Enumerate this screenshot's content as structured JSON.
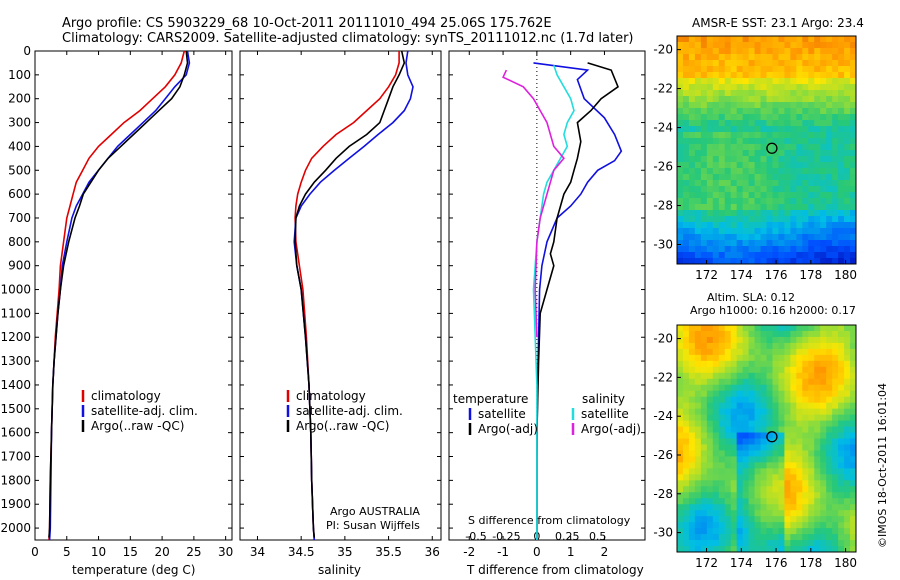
{
  "header": {
    "line1": "Argo profile: CS 5903229_68 10-Oct-2011 20111010_494 25.06S 175.762E",
    "line2": "Climatology: CARS2009. Satellite-adjusted climatology: synTS_20111012.nc (1.7d later)"
  },
  "colors": {
    "climatology": "#e00000",
    "satellite": "#1010e0",
    "argo": "#000000",
    "salinity_sat": "#22dddd",
    "salinity_argo": "#dd22dd"
  },
  "chart_data": [
    {
      "type": "line",
      "name": "temperature-profile",
      "xlabel": "temperature (deg C)",
      "ylabel": "",
      "xlim": [
        0,
        31
      ],
      "ylim": [
        2050,
        0
      ],
      "xticks": [
        0,
        5,
        10,
        15,
        20,
        25,
        30
      ],
      "yticks": [
        0,
        100,
        200,
        300,
        400,
        500,
        600,
        700,
        800,
        900,
        1000,
        1100,
        1200,
        1300,
        1400,
        1500,
        1600,
        1700,
        1800,
        1900,
        2000
      ],
      "legend_position": "lower-center",
      "series": [
        {
          "name": "climatology",
          "color": "#e00000",
          "x": [
            23.5,
            23,
            22,
            20.5,
            18.5,
            16.5,
            14,
            12,
            10,
            8.5,
            7.5,
            6.5,
            6,
            5.5,
            5,
            4.5,
            4,
            3.8,
            3.5,
            3.2,
            3,
            2.8,
            2.6,
            2.4,
            2.3,
            2.2
          ],
          "y": [
            0,
            50,
            100,
            150,
            200,
            250,
            300,
            350,
            400,
            450,
            500,
            550,
            600,
            650,
            700,
            800,
            900,
            1000,
            1100,
            1200,
            1300,
            1400,
            1600,
            1800,
            2000,
            2050
          ]
        },
        {
          "name": "satellite-adj. clim.",
          "color": "#1010e0",
          "x": [
            24,
            24.3,
            23.8,
            22,
            20.5,
            19,
            17,
            15,
            13,
            11.5,
            10,
            8.5,
            7.5,
            6.5,
            5.8,
            5,
            4.3,
            4,
            3.6,
            3.3,
            3,
            2.8,
            2.6,
            2.5,
            2.4,
            2.3
          ],
          "y": [
            0,
            50,
            100,
            150,
            200,
            250,
            300,
            350,
            400,
            450,
            500,
            550,
            600,
            650,
            700,
            800,
            900,
            1000,
            1100,
            1200,
            1300,
            1400,
            1600,
            1800,
            2000,
            2050
          ]
        },
        {
          "name": "Argo(..raw -QC)",
          "color": "#000000",
          "x": [
            23.8,
            24,
            23.5,
            22.8,
            21.5,
            19.5,
            17.5,
            15.5,
            13.5,
            11.5,
            10,
            8.8,
            7.6,
            7,
            6.3,
            5.3,
            4.5,
            4,
            3.6,
            3.3,
            3,
            2.8,
            2.6,
            2.4,
            2.3,
            2.2
          ],
          "y": [
            0,
            50,
            100,
            150,
            200,
            250,
            300,
            350,
            400,
            450,
            500,
            550,
            600,
            650,
            700,
            800,
            900,
            1000,
            1100,
            1200,
            1300,
            1400,
            1600,
            1800,
            2000,
            2040
          ]
        }
      ]
    },
    {
      "type": "line",
      "name": "salinity-profile",
      "xlabel": "salinity",
      "ylabel": "",
      "xlim": [
        33.8,
        36.1
      ],
      "ylim": [
        2050,
        0
      ],
      "xticks": [
        34,
        34.5,
        35,
        35.5,
        36
      ],
      "legend_position": "lower-center",
      "series": [
        {
          "name": "climatology",
          "color": "#e00000",
          "x": [
            35.62,
            35.62,
            35.58,
            35.5,
            35.4,
            35.25,
            35.1,
            34.9,
            34.75,
            34.62,
            34.55,
            34.5,
            34.46,
            34.44,
            34.43,
            34.44,
            34.48,
            34.52,
            34.56,
            34.59,
            34.61,
            34.62,
            34.64,
            34.65
          ],
          "y": [
            0,
            50,
            100,
            150,
            200,
            250,
            300,
            350,
            400,
            450,
            500,
            550,
            600,
            650,
            700,
            800,
            900,
            1000,
            1200,
            1400,
            1600,
            1800,
            2000,
            2050
          ]
        },
        {
          "name": "satellite-adj. clim.",
          "color": "#1010e0",
          "x": [
            35.72,
            35.7,
            35.72,
            35.78,
            35.75,
            35.68,
            35.55,
            35.38,
            35.22,
            35.05,
            34.88,
            34.72,
            34.6,
            34.5,
            34.44,
            34.42,
            34.45,
            34.5,
            34.55,
            34.59,
            34.61,
            34.62,
            34.64,
            34.65
          ],
          "y": [
            0,
            50,
            100,
            150,
            200,
            250,
            300,
            350,
            400,
            450,
            500,
            550,
            600,
            650,
            700,
            800,
            900,
            1000,
            1200,
            1400,
            1600,
            1800,
            2000,
            2050
          ]
        },
        {
          "name": "Argo(..raw -QC)",
          "color": "#000000",
          "x": [
            35.65,
            35.68,
            35.62,
            35.55,
            35.5,
            35.45,
            35.4,
            35.25,
            35.05,
            34.9,
            34.78,
            34.65,
            34.55,
            34.48,
            34.44,
            34.43,
            34.45,
            34.5,
            34.55,
            34.59,
            34.61,
            34.62,
            34.64,
            34.65
          ],
          "y": [
            0,
            50,
            100,
            150,
            200,
            250,
            300,
            350,
            400,
            450,
            500,
            550,
            600,
            650,
            700,
            800,
            900,
            1000,
            1200,
            1400,
            1600,
            1800,
            2000,
            2040
          ]
        }
      ]
    },
    {
      "type": "line",
      "name": "difference-profile",
      "xlabel": "T difference from climatology",
      "xlabel_top": "S difference from climatology",
      "ylabel": "",
      "xlim": [
        -2.6,
        3.2
      ],
      "ylim": [
        2050,
        0
      ],
      "xticks": [
        -2,
        -1,
        0,
        1,
        2
      ],
      "s_ticks": [
        "-0.5",
        "-0.25",
        "0",
        "0.25",
        "0.5"
      ],
      "s_tick_positions_T": [
        -1.8,
        -0.9,
        0,
        0.9,
        1.8
      ],
      "legend_position": "lower-center",
      "legend_headers": {
        "temperature": "temperature",
        "salinity": "salinity"
      },
      "series": [
        {
          "name": "satellite",
          "group": "temperature",
          "color": "#1010e0",
          "x": [
            -0.1,
            1.5,
            1.2,
            1.4,
            2.0,
            2.3,
            2.5,
            2.3,
            1.8,
            1.5,
            1.3,
            1.0,
            0.6,
            0.3,
            0.15,
            0.08,
            0.05,
            0.02,
            0,
            0
          ],
          "y": [
            50,
            80,
            120,
            200,
            280,
            350,
            420,
            460,
            500,
            550,
            600,
            650,
            700,
            800,
            900,
            1000,
            1200,
            1400,
            1700,
            2050
          ]
        },
        {
          "name": "Argo(-adj)",
          "group": "temperature",
          "color": "#000000",
          "x": [
            1.5,
            2.2,
            2.4,
            1.9,
            1.6,
            1.2,
            1.3,
            1.2,
            1.1,
            1.0,
            0.8,
            0.6,
            0.5,
            0.4,
            0.5,
            0.3,
            0.1,
            0.05,
            0,
            0
          ],
          "y": [
            50,
            80,
            150,
            200,
            250,
            300,
            380,
            450,
            500,
            550,
            600,
            700,
            800,
            850,
            900,
            1000,
            1100,
            1300,
            1600,
            2040
          ]
        },
        {
          "name": "satellite",
          "group": "salinity",
          "color": "#22dddd",
          "x": [
            0.5,
            0.6,
            0.8,
            1.0,
            1.1,
            0.9,
            0.8,
            0.9,
            0.7,
            0.5,
            0.3,
            0.2,
            0.1,
            0,
            -0.1,
            -0.05,
            0,
            0,
            0
          ],
          "y": [
            60,
            100,
            150,
            200,
            250,
            300,
            350,
            400,
            450,
            500,
            550,
            600,
            700,
            800,
            1000,
            1200,
            1400,
            1700,
            2050
          ]
        },
        {
          "name": "Argo(-adj)",
          "group": "salinity",
          "color": "#dd22dd",
          "x": [
            -0.9,
            -1.0,
            -0.4,
            -0.1,
            0.1,
            0.3,
            0.4,
            0.5,
            0.8,
            0.5,
            0.4,
            0.3,
            0.1,
            0,
            -0.05,
            0
          ],
          "y": [
            80,
            110,
            150,
            200,
            250,
            300,
            350,
            400,
            450,
            500,
            550,
            600,
            700,
            800,
            1000,
            1200
          ]
        }
      ]
    }
  ],
  "maps": {
    "sst": {
      "title": "AMSR-E SST: 23.1  Argo: 23.4",
      "xticks": [
        "172",
        "174",
        "176",
        "178",
        "180"
      ],
      "yticks": [
        "-20",
        "-22",
        "-24",
        "-26",
        "-28",
        "-30"
      ]
    },
    "sla": {
      "title_line1": "Altim. SLA: 0.12",
      "title_line2": "Argo h1000: 0.16 h2000: 0.17",
      "xticks": [
        "172",
        "174",
        "176",
        "178",
        "180"
      ],
      "yticks": [
        "-20",
        "-22",
        "-24",
        "-26",
        "-28",
        "-30"
      ]
    },
    "marker": {
      "lon": 175.762,
      "lat": -25.06
    }
  },
  "footer": {
    "credit": "Argo AUSTRALIA",
    "pi": "PI: Susan Wijffels",
    "watermark": "©IMOS 18-Oct-2011 16:01:04"
  }
}
